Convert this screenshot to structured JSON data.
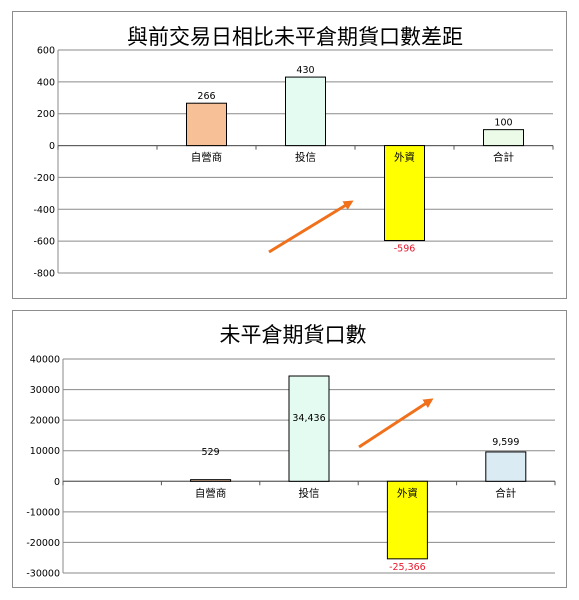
{
  "chart_data": [
    {
      "type": "bar",
      "title": "與前交易日相比未平倉期貨口數差距",
      "categories": [
        "",
        "自營商",
        "投信",
        "外資",
        "合計"
      ],
      "values": [
        null,
        266,
        430,
        -596,
        100
      ],
      "data_labels": [
        "",
        "266",
        "430",
        "-596",
        "100"
      ],
      "ylim": [
        -800,
        600
      ],
      "yticks": [
        600,
        400,
        200,
        0,
        -200,
        -400,
        -600,
        -800
      ],
      "ytick_labels": [
        "600",
        "400",
        "200",
        "0",
        "-200",
        "-400",
        "-600",
        "-800"
      ],
      "bar_colors": [
        "",
        "#f8c097",
        "#e4fbf2",
        "#ffff00",
        "#ebfbe8"
      ],
      "grid": true,
      "annotation": "orange arrow pointing up-right"
    },
    {
      "type": "bar",
      "title": "未平倉期貨口數",
      "categories": [
        "",
        "自營商",
        "投信",
        "外資",
        "合計"
      ],
      "values": [
        null,
        529,
        34436,
        -25366,
        9599
      ],
      "data_labels": [
        "",
        "529",
        "34,436",
        "-25,366",
        "9,599"
      ],
      "ylim": [
        -30000,
        40000
      ],
      "yticks": [
        40000,
        30000,
        20000,
        10000,
        0,
        -10000,
        -20000,
        -30000
      ],
      "ytick_labels": [
        "40000",
        "30000",
        "20000",
        "10000",
        "0",
        "-10000",
        "-20000",
        "-30000"
      ],
      "bar_colors": [
        "",
        "#f6c9a9",
        "#e4fbf2",
        "#ffff00",
        "#dbebf3"
      ],
      "grid": true,
      "annotation": "orange arrow pointing up-right"
    }
  ]
}
